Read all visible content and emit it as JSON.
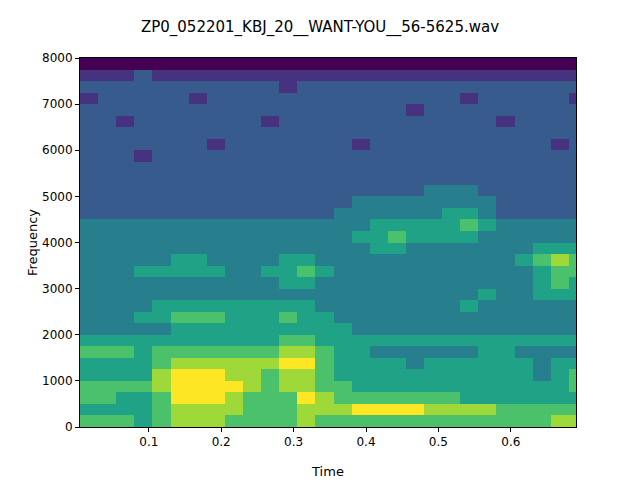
{
  "chart_data": {
    "type": "heatmap",
    "title": "ZP0_052201_KBJ_20__WANT-YOU__56-5625.wav",
    "x_label": "Time",
    "y_label": "Frequency",
    "color": "Viridis",
    "grid": false,
    "xlim": [
      0.005,
      0.69
    ],
    "xticks": [
      0.1,
      0.2,
      0.3,
      0.4,
      0.5,
      0.6
    ],
    "ylim": [
      0,
      8000
    ],
    "yticks": [
      0,
      1000,
      2000,
      3000,
      4000,
      5000,
      6000,
      7000,
      8000
    ],
    "x": [
      0.0175,
      0.0425,
      0.0675,
      0.0925,
      0.1175,
      0.1425,
      0.1675,
      0.1925,
      0.2175,
      0.2425,
      0.2675,
      0.2925,
      0.3175,
      0.3425,
      0.3675,
      0.3925,
      0.4175,
      0.4425,
      0.4675,
      0.4925,
      0.5175,
      0.5425,
      0.5675,
      0.5925,
      0.6175,
      0.6425,
      0.6675,
      0.6925
    ],
    "y": [
      125,
      375,
      625,
      875,
      1125,
      1375,
      1625,
      1875,
      2125,
      2375,
      2625,
      2875,
      3125,
      3375,
      3625,
      3875,
      4125,
      4375,
      4625,
      4875,
      5125,
      5375,
      5625,
      5875,
      6125,
      6375,
      6625,
      6875,
      7125,
      7375,
      7625,
      7875
    ],
    "z": [
      [
        7,
        7,
        7,
        6,
        7,
        8,
        8,
        8,
        7,
        7,
        7,
        7,
        8,
        7,
        7,
        7,
        7,
        7,
        7,
        7,
        7,
        7,
        7,
        7,
        7,
        7,
        8,
        8
      ],
      [
        6,
        6,
        6,
        6,
        7,
        8,
        8,
        8,
        8,
        7,
        7,
        7,
        8,
        8,
        8,
        9,
        9,
        9,
        9,
        8,
        8,
        8,
        8,
        7,
        7,
        7,
        7,
        7
      ],
      [
        7,
        7,
        6,
        6,
        7,
        9,
        9,
        9,
        8,
        7,
        7,
        7,
        9,
        8,
        7,
        7,
        7,
        7,
        7,
        7,
        7,
        6,
        6,
        6,
        6,
        6,
        6,
        6
      ],
      [
        7,
        7,
        7,
        7,
        8,
        9,
        9,
        9,
        9,
        8,
        7,
        8,
        8,
        7,
        7,
        6,
        6,
        6,
        6,
        6,
        6,
        6,
        6,
        6,
        6,
        6,
        6,
        7
      ],
      [
        6,
        6,
        6,
        6,
        8,
        9,
        9,
        9,
        8,
        8,
        7,
        8,
        8,
        7,
        6,
        6,
        6,
        6,
        6,
        6,
        6,
        6,
        6,
        6,
        6,
        5,
        6,
        7
      ],
      [
        6,
        6,
        6,
        6,
        7,
        8,
        8,
        8,
        8,
        8,
        8,
        9,
        9,
        7,
        6,
        6,
        6,
        6,
        5,
        6,
        6,
        6,
        6,
        6,
        6,
        5,
        6,
        6
      ],
      [
        7,
        7,
        7,
        6,
        7,
        7,
        7,
        7,
        7,
        7,
        7,
        8,
        8,
        7,
        6,
        6,
        5,
        5,
        5,
        5,
        5,
        5,
        6,
        6,
        5,
        5,
        5,
        5
      ],
      [
        6,
        6,
        6,
        6,
        6,
        6,
        6,
        6,
        6,
        6,
        6,
        7,
        7,
        6,
        6,
        6,
        6,
        6,
        6,
        6,
        6,
        6,
        6,
        6,
        6,
        6,
        6,
        6
      ],
      [
        5,
        5,
        5,
        5,
        5,
        6,
        6,
        6,
        6,
        6,
        6,
        6,
        6,
        6,
        6,
        5,
        5,
        5,
        5,
        5,
        5,
        5,
        5,
        5,
        5,
        5,
        5,
        5
      ],
      [
        5,
        5,
        5,
        6,
        6,
        7,
        7,
        7,
        6,
        6,
        6,
        7,
        6,
        6,
        5,
        5,
        5,
        5,
        5,
        5,
        5,
        5,
        5,
        5,
        5,
        5,
        5,
        5
      ],
      [
        5,
        5,
        5,
        5,
        6,
        6,
        6,
        6,
        6,
        6,
        6,
        6,
        6,
        5,
        5,
        5,
        5,
        5,
        5,
        5,
        5,
        6,
        5,
        5,
        5,
        5,
        5,
        5
      ],
      [
        5,
        5,
        5,
        5,
        5,
        5,
        5,
        5,
        5,
        5,
        5,
        5,
        5,
        5,
        5,
        5,
        5,
        5,
        5,
        5,
        5,
        5,
        6,
        5,
        5,
        6,
        6,
        6
      ],
      [
        5,
        5,
        5,
        5,
        5,
        5,
        5,
        5,
        5,
        5,
        5,
        6,
        6,
        5,
        5,
        5,
        5,
        5,
        5,
        5,
        5,
        5,
        5,
        5,
        5,
        6,
        7,
        6
      ],
      [
        5,
        5,
        5,
        6,
        6,
        6,
        6,
        6,
        5,
        5,
        6,
        6,
        7,
        6,
        5,
        5,
        5,
        5,
        5,
        5,
        5,
        5,
        5,
        5,
        5,
        6,
        7,
        7
      ],
      [
        5,
        5,
        5,
        5,
        5,
        6,
        6,
        5,
        5,
        5,
        5,
        6,
        6,
        5,
        5,
        5,
        5,
        5,
        5,
        5,
        5,
        5,
        5,
        5,
        6,
        7,
        8,
        7
      ],
      [
        5,
        5,
        5,
        5,
        5,
        5,
        5,
        5,
        5,
        5,
        5,
        5,
        5,
        5,
        5,
        5,
        6,
        6,
        5,
        5,
        5,
        5,
        5,
        5,
        5,
        6,
        6,
        6
      ],
      [
        5,
        5,
        5,
        5,
        5,
        5,
        5,
        5,
        5,
        5,
        5,
        5,
        5,
        5,
        5,
        6,
        6,
        7,
        6,
        6,
        6,
        6,
        5,
        5,
        5,
        5,
        5,
        5
      ],
      [
        5,
        5,
        5,
        5,
        5,
        5,
        5,
        5,
        5,
        5,
        5,
        5,
        5,
        5,
        5,
        5,
        6,
        6,
        6,
        6,
        6,
        7,
        6,
        5,
        5,
        5,
        5,
        5
      ],
      [
        4,
        4,
        4,
        4,
        4,
        4,
        4,
        4,
        4,
        4,
        4,
        4,
        4,
        4,
        5,
        5,
        5,
        5,
        5,
        5,
        6,
        6,
        5,
        4,
        4,
        4,
        4,
        4
      ],
      [
        4,
        4,
        4,
        4,
        4,
        4,
        4,
        4,
        4,
        4,
        4,
        4,
        4,
        4,
        4,
        5,
        5,
        5,
        5,
        5,
        5,
        5,
        5,
        4,
        4,
        4,
        4,
        4
      ],
      [
        4,
        4,
        4,
        4,
        4,
        4,
        4,
        4,
        4,
        4,
        4,
        4,
        4,
        4,
        4,
        4,
        4,
        4,
        4,
        5,
        5,
        5,
        4,
        4,
        4,
        4,
        4,
        4
      ],
      [
        4,
        4,
        4,
        4,
        4,
        4,
        4,
        4,
        4,
        4,
        4,
        4,
        4,
        4,
        4,
        4,
        4,
        4,
        4,
        4,
        4,
        4,
        4,
        4,
        4,
        4,
        4,
        4
      ],
      [
        4,
        4,
        4,
        4,
        4,
        4,
        4,
        4,
        4,
        4,
        4,
        4,
        4,
        4,
        4,
        4,
        4,
        4,
        4,
        4,
        4,
        4,
        4,
        4,
        4,
        4,
        4,
        4
      ],
      [
        4,
        4,
        4,
        3,
        4,
        4,
        4,
        4,
        4,
        4,
        4,
        4,
        4,
        4,
        4,
        4,
        4,
        4,
        4,
        4,
        4,
        4,
        4,
        4,
        4,
        4,
        4,
        4
      ],
      [
        4,
        4,
        4,
        4,
        4,
        4,
        4,
        3,
        4,
        4,
        4,
        4,
        4,
        4,
        4,
        3,
        4,
        4,
        4,
        4,
        4,
        4,
        4,
        4,
        4,
        4,
        3,
        4
      ],
      [
        4,
        4,
        4,
        4,
        4,
        4,
        4,
        4,
        4,
        4,
        4,
        4,
        4,
        4,
        4,
        4,
        4,
        4,
        4,
        4,
        4,
        4,
        4,
        4,
        4,
        4,
        4,
        4
      ],
      [
        4,
        4,
        3,
        4,
        4,
        4,
        4,
        4,
        4,
        4,
        3,
        4,
        4,
        4,
        4,
        4,
        4,
        4,
        4,
        4,
        4,
        4,
        4,
        3,
        4,
        4,
        4,
        4
      ],
      [
        4,
        4,
        4,
        4,
        4,
        4,
        4,
        4,
        4,
        4,
        4,
        4,
        4,
        4,
        4,
        4,
        4,
        4,
        3,
        4,
        4,
        4,
        4,
        4,
        4,
        4,
        4,
        4
      ],
      [
        3,
        4,
        4,
        4,
        4,
        4,
        3,
        4,
        4,
        4,
        4,
        4,
        4,
        4,
        4,
        4,
        4,
        4,
        4,
        4,
        4,
        3,
        4,
        4,
        4,
        4,
        4,
        3
      ],
      [
        4,
        4,
        4,
        4,
        4,
        4,
        4,
        4,
        4,
        4,
        4,
        3,
        4,
        4,
        4,
        4,
        4,
        4,
        4,
        4,
        4,
        4,
        4,
        4,
        4,
        4,
        4,
        4
      ],
      [
        3,
        3,
        3,
        4,
        3,
        3,
        3,
        3,
        3,
        3,
        3,
        3,
        3,
        3,
        3,
        3,
        3,
        3,
        3,
        3,
        3,
        3,
        3,
        3,
        3,
        3,
        3,
        3
      ],
      [
        2,
        2,
        2,
        2,
        2,
        2,
        2,
        2,
        2,
        2,
        2,
        2,
        2,
        2,
        2,
        2,
        2,
        2,
        2,
        2,
        2,
        2,
        2,
        2,
        2,
        2,
        2,
        2
      ]
    ]
  }
}
